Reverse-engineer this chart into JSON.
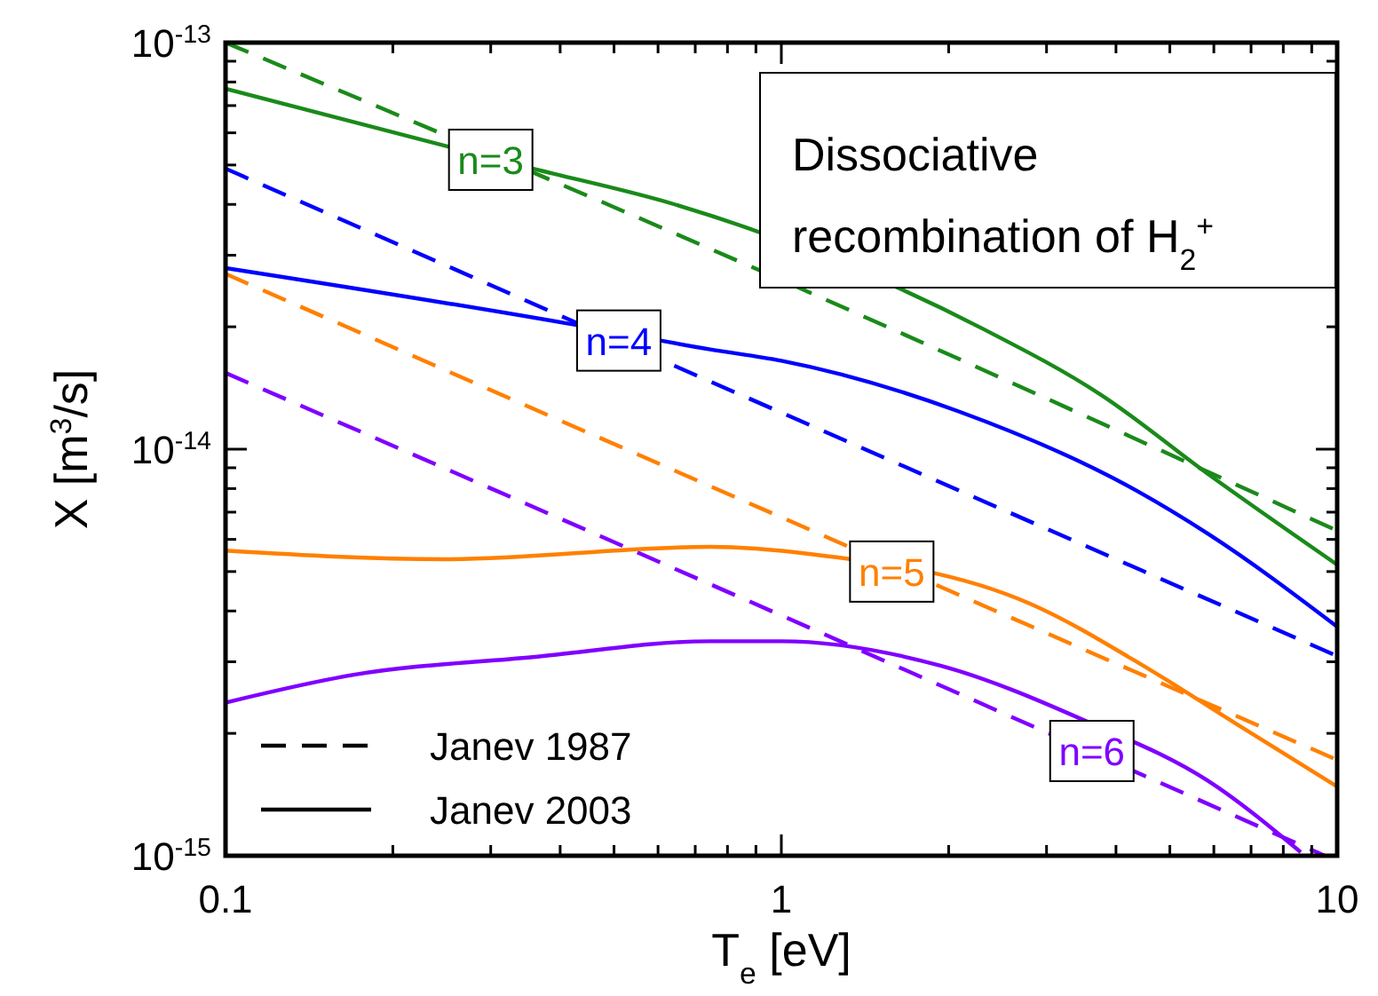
{
  "chart_data": {
    "type": "line",
    "title": "Dissociative recombination of H$_{2}$$^{+}$",
    "xlabel": "T$_{e}$ [eV]",
    "ylabel": "X [m$^{3}$/s]",
    "log": "xy",
    "grid": false,
    "xlim": [
      0.1,
      10
    ],
    "ylim": [
      1e-15,
      1e-13
    ],
    "xticks": [
      {
        "value": 0.1,
        "label": "0.1"
      },
      {
        "value": 0.2,
        "label": null
      },
      {
        "value": 0.3,
        "label": null
      },
      {
        "value": 0.4,
        "label": null
      },
      {
        "value": 0.5,
        "label": null
      },
      {
        "value": 0.6,
        "label": null
      },
      {
        "value": 0.7,
        "label": null
      },
      {
        "value": 0.8,
        "label": null
      },
      {
        "value": 0.9,
        "label": null
      },
      {
        "value": 1,
        "label": "1"
      },
      {
        "value": 2,
        "label": null
      },
      {
        "value": 3,
        "label": null
      },
      {
        "value": 4,
        "label": null
      },
      {
        "value": 5,
        "label": null
      },
      {
        "value": 6,
        "label": null
      },
      {
        "value": 7,
        "label": null
      },
      {
        "value": 8,
        "label": null
      },
      {
        "value": 9,
        "label": null
      },
      {
        "value": 10,
        "label": "10"
      }
    ],
    "yticks": [
      {
        "value": 1e-15,
        "label": "10$^{-15}$"
      },
      {
        "value": 2e-15,
        "label": null
      },
      {
        "value": 3e-15,
        "label": null
      },
      {
        "value": 4e-15,
        "label": null
      },
      {
        "value": 5e-15,
        "label": null
      },
      {
        "value": 6e-15,
        "label": null
      },
      {
        "value": 7e-15,
        "label": null
      },
      {
        "value": 8e-15,
        "label": null
      },
      {
        "value": 9e-15,
        "label": null
      },
      {
        "value": 1e-14,
        "label": "10$^{-14}$"
      },
      {
        "value": 2e-14,
        "label": null
      },
      {
        "value": 3e-14,
        "label": null
      },
      {
        "value": 4e-14,
        "label": null
      },
      {
        "value": 5e-14,
        "label": null
      },
      {
        "value": 6e-14,
        "label": null
      },
      {
        "value": 7e-14,
        "label": null
      },
      {
        "value": 8e-14,
        "label": null
      },
      {
        "value": 9e-14,
        "label": null
      },
      {
        "value": 1e-13,
        "label": "10$^{-13}$"
      }
    ],
    "annotations": [
      "Janev 1987",
      "Janev 2003",
      {
        "text": "n=3",
        "x": 0.3,
        "y": 5.15e-14
      },
      {
        "text": "n=4",
        "x": 0.51,
        "y": 1.85e-14
      },
      {
        "text": "n=5",
        "x": 1.58,
        "y": 5e-15
      },
      {
        "text": "n=6",
        "x": 3.62,
        "y": 1.81e-15
      }
    ],
    "series": [
      {
        "color": "#1a8a1a",
        "line_style": "dashed",
        "x": [
          0.1,
          0.745,
          10
        ],
        "values": [
          1e-13,
          3.11e-14,
          6.3e-15
        ]
      },
      {
        "color": "#0000ff",
        "line_style": "dashed",
        "x": [
          0.1,
          1,
          10
        ],
        "values": [
          4.9e-14,
          1.23e-14,
          3.1e-15
        ]
      },
      {
        "color": "#ff8000",
        "line_style": "dashed",
        "x": [
          0.1,
          1,
          10
        ],
        "values": [
          2.7e-14,
          6.8e-15,
          1.72e-15
        ]
      },
      {
        "color": "#8000ff",
        "line_style": "dashed",
        "x": [
          0.1,
          1,
          9.5
        ],
        "values": [
          1.54e-14,
          3.9e-15,
          1e-15
        ]
      },
      {
        "color": "#1a8a1a",
        "line_style": "solid",
        "x": [
          0.1,
          0.357,
          0.643,
          2.3,
          3.76,
          5.85,
          10
        ],
        "values": [
          7.7e-14,
          4.9e-14,
          4e-14,
          1.98e-14,
          1.36e-14,
          8.7e-15,
          5.2e-15
        ]
      },
      {
        "color": "#0000ff",
        "line_style": "solid",
        "x": [
          0.1,
          0.41,
          0.745,
          1,
          2.08,
          4.36,
          5.85,
          10
        ],
        "values": [
          2.79e-14,
          2.04e-14,
          1.76e-14,
          1.65e-14,
          1.24e-14,
          7.9e-15,
          6.2e-15,
          3.66e-15
        ]
      },
      {
        "color": "#ff8000",
        "line_style": "solid",
        "x": [
          0.1,
          0.247,
          0.745,
          1.13,
          2.8,
          4.58,
          6.62,
          10
        ],
        "values": [
          5.63e-15,
          5.36e-15,
          5.75e-15,
          5.52e-15,
          4.17e-15,
          2.88e-15,
          2.1e-15,
          1.48e-15
        ]
      },
      {
        "color": "#8000ff",
        "line_style": "solid",
        "x": [
          0.1,
          0.171,
          0.357,
          0.745,
          1,
          1.94,
          3.57,
          5.85,
          8.6
        ],
        "values": [
          2.38e-15,
          2.79e-15,
          3.08e-15,
          3.37e-15,
          3.37e-15,
          2.93e-15,
          2.13e-15,
          1.53e-15,
          1.02e-15
        ]
      }
    ]
  }
}
